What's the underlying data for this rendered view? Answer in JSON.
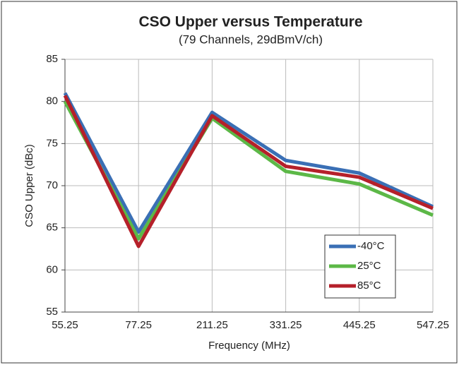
{
  "chart_data": {
    "type": "line",
    "title": "CSO Upper versus Temperature",
    "subtitle": "(79 Channels, 29dBmV/ch)",
    "x_label": "Frequency (MHz)",
    "y_label": "CSO Upper (dBc)",
    "categories": [
      "55.25",
      "77.25",
      "211.25",
      "331.25",
      "445.25",
      "547.25"
    ],
    "series": [
      {
        "name": "-40°C",
        "color": "#3a6fb5",
        "values": [
          81,
          64.5,
          78.7,
          73,
          71.5,
          67.5
        ]
      },
      {
        "name": "25°C",
        "color": "#5cb847",
        "values": [
          80,
          63.7,
          78,
          71.7,
          70.2,
          66.5
        ]
      },
      {
        "name": "85°C",
        "color": "#b5202a",
        "values": [
          80.7,
          62.8,
          78.3,
          72.3,
          71,
          67.3
        ]
      }
    ],
    "ylim": [
      55,
      85
    ],
    "yticks": [
      55,
      60,
      65,
      70,
      75,
      80,
      85
    ],
    "grid": true,
    "legend": "lower right"
  }
}
